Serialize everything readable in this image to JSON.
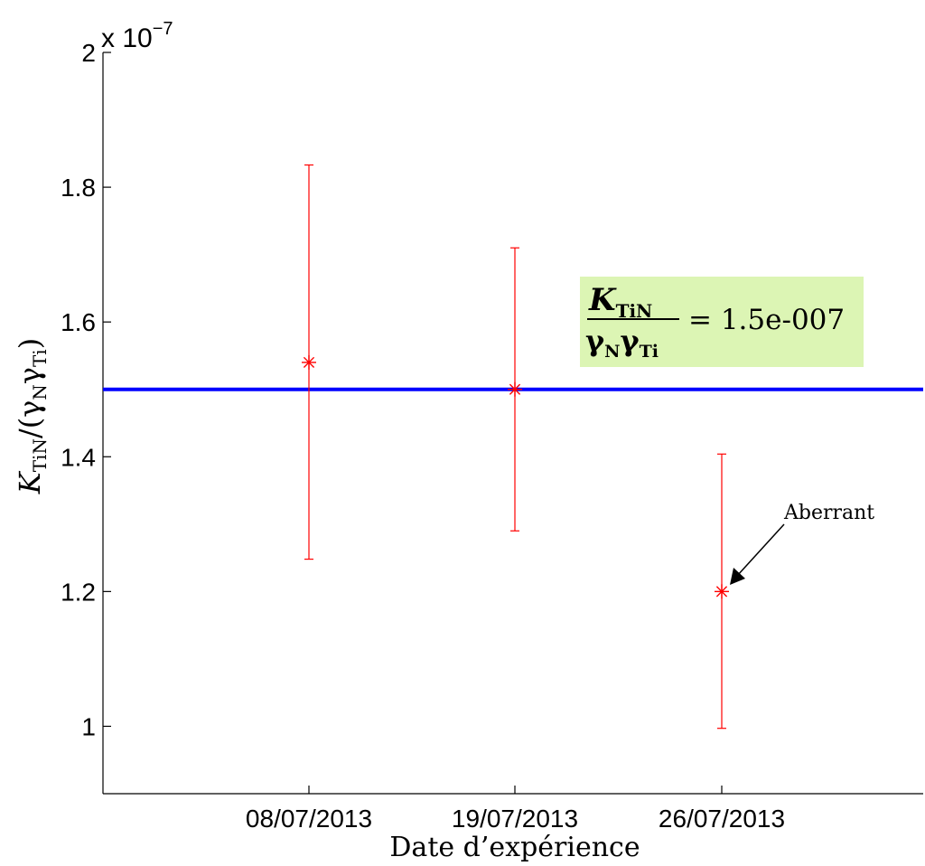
{
  "chart_data": {
    "type": "scatter",
    "categories": [
      "08/07/2013",
      "19/07/2013",
      "26/07/2013"
    ],
    "series": [
      {
        "values": [
          1.54e-07,
          1.5e-07,
          1.2e-07
        ],
        "error_lower": [
          1.248e-07,
          1.29e-07,
          9.97e-08
        ],
        "error_upper": [
          1.833e-07,
          1.71e-07,
          1.404e-07
        ],
        "color": "#ff0000",
        "marker": "asterisk"
      }
    ],
    "reference_line": {
      "value": 1.5e-07,
      "color": "#0000ff"
    },
    "ylim": [
      9e-08,
      2e-07
    ],
    "y_ticks": [
      1.0,
      1.2,
      1.4,
      1.6,
      1.8,
      2.0
    ],
    "y_tick_labels": [
      "1",
      "1.2",
      "1.4",
      "1.6",
      "1.8",
      "2"
    ],
    "y_multiplier": {
      "base": "x 10",
      "exponent": "−7"
    },
    "xlabel": "Date d’expérience",
    "ylabel": {
      "main": "K",
      "main_sub": "TiN",
      "rest_open": "/(",
      "g1": "γ",
      "g1_sub": "N",
      "g2": "γ",
      "g2_sub": "Ti",
      "rest_close": ")"
    },
    "annotations": {
      "formula_box": {
        "numerator": "K",
        "numerator_sub": "TiN",
        "den_g1": "γ",
        "den_g1_sub": "N",
        "den_g2": "γ",
        "den_g2_sub": "Ti",
        "rhs": "= 1.5e-007",
        "background": "#dcf5b4"
      },
      "outlier": {
        "text": "Aberrant",
        "category": "26/07/2013"
      }
    },
    "grid": false
  }
}
